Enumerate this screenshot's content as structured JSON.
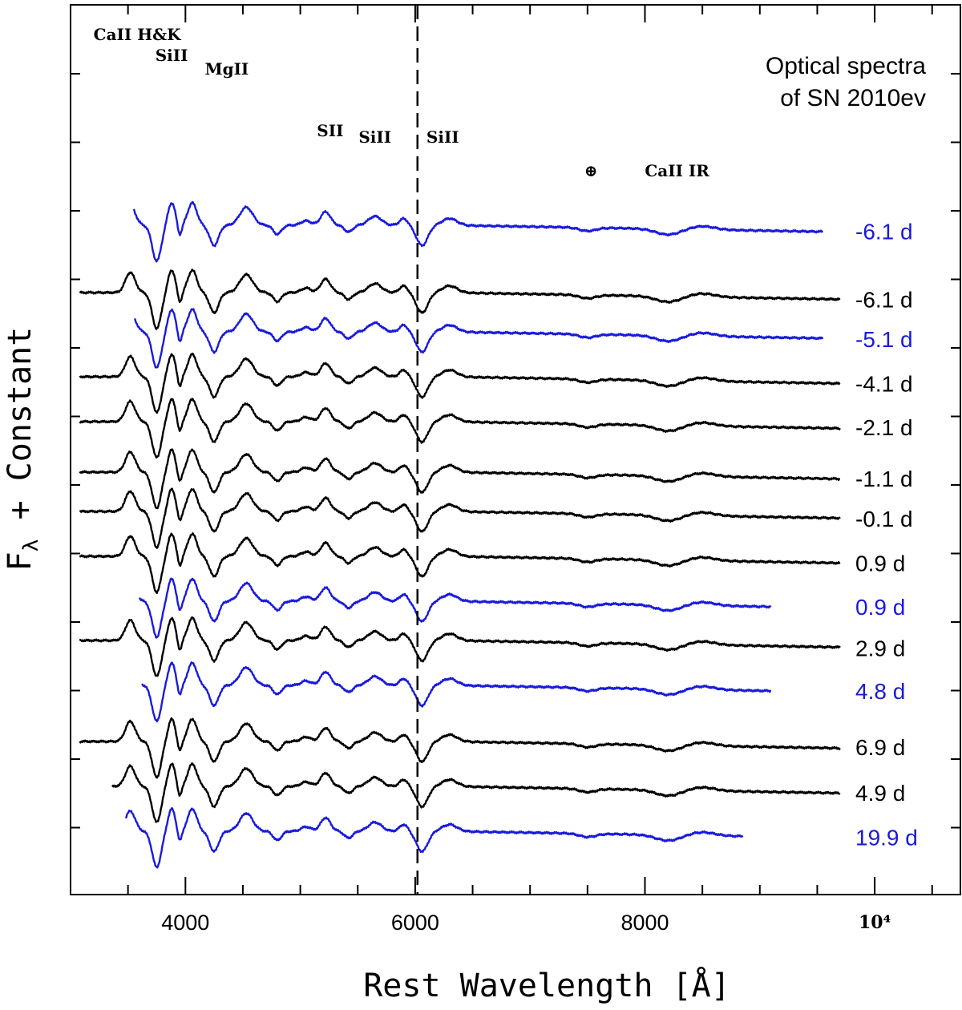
{
  "chart_data": {
    "type": "line",
    "title_lines": [
      "Optical spectra",
      "of SN 2010ev"
    ],
    "xlabel": "Rest Wavelength [Å]",
    "ylabel_main": "F",
    "ylabel_sub": "λ",
    "ylabel_rest": " + Constant",
    "xlim": [
      3000,
      10700
    ],
    "x_ticks": [
      {
        "value": 4000,
        "label": "4000"
      },
      {
        "value": 6000,
        "label": "6000"
      },
      {
        "value": 8000,
        "label": "8000"
      },
      {
        "value": 10000,
        "label": "10⁴"
      }
    ],
    "reference_line": {
      "x": 6020,
      "style": "dashed"
    },
    "line_ids": [
      {
        "label": "CaII  H&K",
        "x": 3580,
        "row": 0
      },
      {
        "label": "SiII",
        "x": 3880,
        "row": 1
      },
      {
        "label": "MgII",
        "x": 4360,
        "row": 2
      },
      {
        "label": "SII",
        "x": 5260,
        "row": 3
      },
      {
        "label": "SiII",
        "x": 5650,
        "row": 4
      },
      {
        "label": "SiII",
        "x": 6240,
        "row": 4
      },
      {
        "label": "⊕",
        "x": 7530,
        "row": 5
      },
      {
        "label": "CaII  IR",
        "x": 8280,
        "row": 5
      }
    ],
    "series": [
      {
        "name": "-6.1 d",
        "color": "#1a1adc",
        "offset": 11.2,
        "x_start": 3550,
        "x_end": 9550
      },
      {
        "name": "-6.1 d",
        "color": "#000000",
        "offset": 10.0,
        "x_start": 3080,
        "x_end": 9700
      },
      {
        "name": "-5.1 d",
        "color": "#1a1adc",
        "offset": 9.3,
        "x_start": 3560,
        "x_end": 9550
      },
      {
        "name": "-4.1 d",
        "color": "#000000",
        "offset": 8.5,
        "x_start": 3080,
        "x_end": 9700
      },
      {
        "name": "-2.1 d",
        "color": "#000000",
        "offset": 7.7,
        "x_start": 3080,
        "x_end": 9700
      },
      {
        "name": "-1.1 d",
        "color": "#000000",
        "offset": 6.8,
        "x_start": 3080,
        "x_end": 9700
      },
      {
        "name": "-0.1 d",
        "color": "#000000",
        "offset": 6.1,
        "x_start": 3080,
        "x_end": 9700
      },
      {
        "name": "0.9 d",
        "color": "#000000",
        "offset": 5.3,
        "x_start": 3080,
        "x_end": 9700
      },
      {
        "name": "0.9 d",
        "color": "#1a1adc",
        "offset": 4.5,
        "x_start": 3600,
        "x_end": 9100
      },
      {
        "name": "2.9 d",
        "color": "#000000",
        "offset": 3.8,
        "x_start": 3080,
        "x_end": 9700
      },
      {
        "name": "4.8 d",
        "color": "#1a1adc",
        "offset": 3.0,
        "x_start": 3620,
        "x_end": 9100
      },
      {
        "name": "6.9 d",
        "color": "#000000",
        "offset": 2.0,
        "x_start": 3080,
        "x_end": 9700
      },
      {
        "name": "4.9 d",
        "color": "#000000",
        "offset": 1.2,
        "x_start": 3360,
        "x_end": 9700
      },
      {
        "name": "19.9 d",
        "color": "#1a1adc",
        "offset": 0.4,
        "x_start": 3480,
        "x_end": 8850
      }
    ]
  }
}
